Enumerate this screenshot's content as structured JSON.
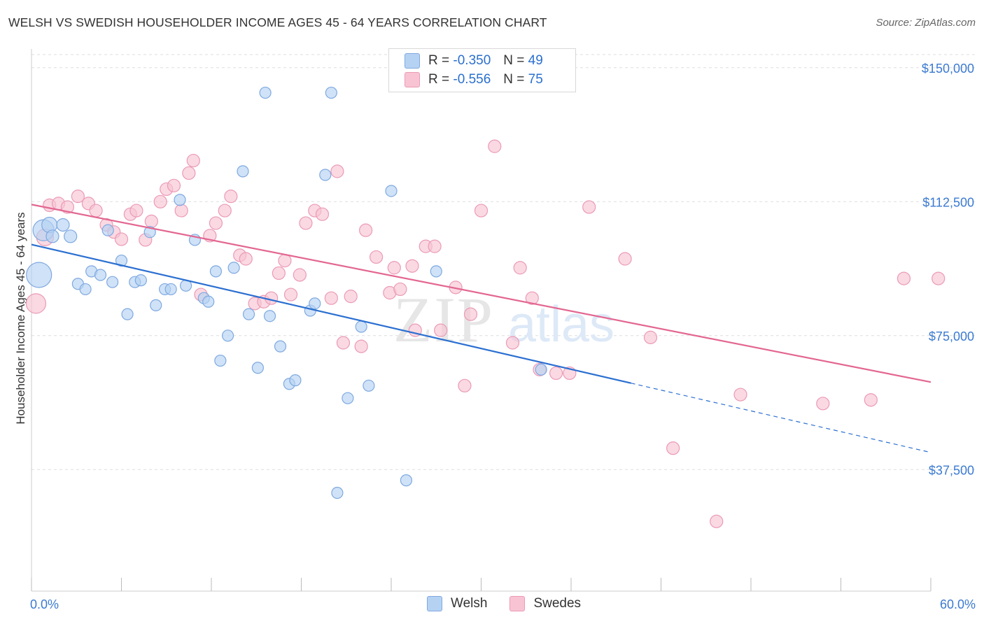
{
  "title": "WELSH VS SWEDISH HOUSEHOLDER INCOME AGES 45 - 64 YEARS CORRELATION CHART",
  "source": "Source: ZipAtlas.com",
  "watermark": {
    "zip": "ZIP",
    "atlas": "atlas"
  },
  "legend": {
    "r_label": "R =",
    "n_label": "N =",
    "welsh": {
      "r": "-0.350",
      "n": "49"
    },
    "swedes": {
      "r": "-0.556",
      "n": "75"
    }
  },
  "colors": {
    "welsh_fill": "#b6d2f3",
    "welsh_stroke": "#7fa9e0",
    "welsh_line": "#2b6fd1",
    "swedes_fill": "#f8c4d4",
    "swedes_stroke": "#eb9ab5",
    "swedes_line": "#e36691",
    "tick_label": "#3b7ad1",
    "grid": "#dddddd"
  },
  "chart_data": {
    "type": "scatter",
    "title": "WELSH VS SWEDISH HOUSEHOLDER INCOME AGES 45 - 64 YEARS CORRELATION CHART",
    "xlabel": "",
    "ylabel": "Householder Income Ages 45 - 64 years",
    "xlim": [
      0,
      60
    ],
    "ylim": [
      12500,
      155000
    ],
    "x_tick_labels": [
      "0.0%",
      "60.0%"
    ],
    "y_ticks": [
      37500,
      75000,
      112500,
      150000
    ],
    "y_tick_labels": [
      "$37,500",
      "$75,000",
      "$112,500",
      "$150,000"
    ],
    "grid": "horizontal dashed",
    "legend_position": "top-center and bottom",
    "series": [
      {
        "name": "Welsh",
        "trend": {
          "x": [
            0,
            40
          ],
          "y": [
            100500,
            61700
          ],
          "dashed_extension_to_x": 60,
          "dashed_end_y": 42300
        },
        "points": [
          [
            0.5,
            92000,
            18
          ],
          [
            0.8,
            104500,
            15
          ],
          [
            1.2,
            106000,
            11
          ],
          [
            1.4,
            102800,
            9
          ],
          [
            2.1,
            106000,
            9
          ],
          [
            2.6,
            102800,
            9
          ],
          [
            3.1,
            89500,
            8
          ],
          [
            3.6,
            88000,
            8
          ],
          [
            4.0,
            93000,
            8
          ],
          [
            4.6,
            92000,
            8
          ],
          [
            5.4,
            90000,
            8
          ],
          [
            5.1,
            104500,
            8
          ],
          [
            6.0,
            96000,
            8
          ],
          [
            6.4,
            81000,
            8
          ],
          [
            6.9,
            90000,
            8
          ],
          [
            7.3,
            90500,
            8
          ],
          [
            7.9,
            104000,
            8
          ],
          [
            8.3,
            83500,
            8
          ],
          [
            8.9,
            88000,
            8
          ],
          [
            9.3,
            88000,
            8
          ],
          [
            9.9,
            113000,
            8
          ],
          [
            10.3,
            89000,
            8
          ],
          [
            10.9,
            101800,
            8
          ],
          [
            11.5,
            85500,
            8
          ],
          [
            11.8,
            84500,
            8
          ],
          [
            12.3,
            93000,
            8
          ],
          [
            12.6,
            68000,
            8
          ],
          [
            13.1,
            75000,
            8
          ],
          [
            13.5,
            94000,
            8
          ],
          [
            14.1,
            121000,
            8
          ],
          [
            14.5,
            81000,
            8
          ],
          [
            15.1,
            66000,
            8
          ],
          [
            15.6,
            143000,
            8
          ],
          [
            15.9,
            80500,
            8
          ],
          [
            16.6,
            72000,
            8
          ],
          [
            17.2,
            61500,
            8
          ],
          [
            17.6,
            62500,
            8
          ],
          [
            18.6,
            82000,
            8
          ],
          [
            18.9,
            84000,
            8
          ],
          [
            19.6,
            120000,
            8
          ],
          [
            20.0,
            143000,
            8
          ],
          [
            20.4,
            31000,
            8
          ],
          [
            21.1,
            57500,
            8
          ],
          [
            22.0,
            77500,
            8
          ],
          [
            22.5,
            61000,
            8
          ],
          [
            24.0,
            115500,
            8
          ],
          [
            25.0,
            34500,
            8
          ],
          [
            27.0,
            93000,
            8
          ],
          [
            34.0,
            65500,
            8
          ]
        ]
      },
      {
        "name": "Swedes",
        "trend": {
          "x": [
            0,
            60
          ],
          "y": [
            111700,
            62000
          ]
        },
        "points": [
          [
            0.3,
            84000,
            14
          ],
          [
            0.9,
            102500,
            12
          ],
          [
            1.2,
            111500,
            9
          ],
          [
            1.8,
            112000,
            9
          ],
          [
            2.4,
            111000,
            9
          ],
          [
            3.1,
            114000,
            9
          ],
          [
            3.8,
            112000,
            9
          ],
          [
            4.3,
            110000,
            9
          ],
          [
            5.0,
            106000,
            9
          ],
          [
            5.5,
            104000,
            9
          ],
          [
            6.0,
            102000,
            9
          ],
          [
            6.6,
            109000,
            9
          ],
          [
            7.0,
            110000,
            9
          ],
          [
            7.6,
            101800,
            9
          ],
          [
            8.0,
            107000,
            9
          ],
          [
            8.6,
            112500,
            9
          ],
          [
            9.0,
            116000,
            9
          ],
          [
            9.5,
            117000,
            9
          ],
          [
            10.0,
            110000,
            9
          ],
          [
            10.5,
            120500,
            9
          ],
          [
            10.8,
            124000,
            9
          ],
          [
            11.3,
            86500,
            9
          ],
          [
            11.9,
            103000,
            9
          ],
          [
            12.3,
            106500,
            9
          ],
          [
            12.9,
            110000,
            9
          ],
          [
            13.3,
            114000,
            9
          ],
          [
            13.9,
            97500,
            9
          ],
          [
            14.3,
            96500,
            9
          ],
          [
            14.9,
            84000,
            9
          ],
          [
            15.5,
            84500,
            9
          ],
          [
            16.0,
            85500,
            9
          ],
          [
            16.5,
            92500,
            9
          ],
          [
            16.9,
            96000,
            9
          ],
          [
            17.3,
            86500,
            9
          ],
          [
            17.9,
            92000,
            9
          ],
          [
            18.3,
            106500,
            9
          ],
          [
            18.9,
            110000,
            9
          ],
          [
            19.4,
            109000,
            9
          ],
          [
            20.0,
            85500,
            9
          ],
          [
            20.4,
            121000,
            9
          ],
          [
            20.8,
            73000,
            9
          ],
          [
            21.3,
            86000,
            9
          ],
          [
            22.0,
            72000,
            9
          ],
          [
            22.3,
            104500,
            9
          ],
          [
            23.0,
            97000,
            9
          ],
          [
            23.9,
            87000,
            9
          ],
          [
            24.2,
            94000,
            9
          ],
          [
            24.6,
            88000,
            9
          ],
          [
            25.4,
            94500,
            9
          ],
          [
            26.3,
            100000,
            9
          ],
          [
            26.9,
            100000,
            9
          ],
          [
            27.3,
            76500,
            9
          ],
          [
            27.6,
            146000,
            9
          ],
          [
            28.3,
            88500,
            9
          ],
          [
            28.9,
            61000,
            9
          ],
          [
            29.3,
            81000,
            9
          ],
          [
            30.0,
            110000,
            9
          ],
          [
            30.9,
            128000,
            9
          ],
          [
            32.1,
            73000,
            9
          ],
          [
            32.6,
            94000,
            9
          ],
          [
            33.4,
            85500,
            9
          ],
          [
            33.9,
            65500,
            9
          ],
          [
            35.9,
            64500,
            9
          ],
          [
            37.2,
            111000,
            9
          ],
          [
            39.6,
            96500,
            9
          ],
          [
            41.3,
            74500,
            9
          ],
          [
            42.8,
            43500,
            9
          ],
          [
            45.7,
            23000,
            9
          ],
          [
            47.3,
            58500,
            9
          ],
          [
            52.8,
            56000,
            9
          ],
          [
            56.0,
            57000,
            9
          ],
          [
            58.2,
            91000,
            9
          ],
          [
            60.5,
            91000,
            9
          ],
          [
            35.0,
            64500,
            9
          ],
          [
            25.6,
            76500,
            9
          ]
        ]
      }
    ]
  }
}
